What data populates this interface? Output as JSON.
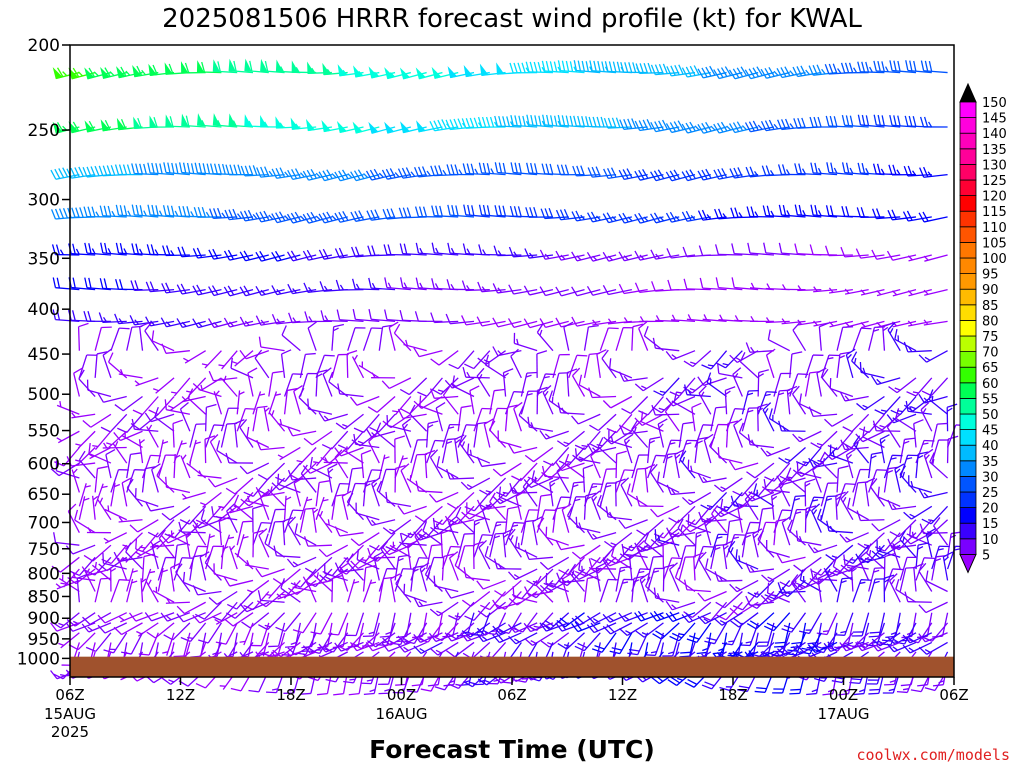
{
  "chart_data": {
    "type": "wind-barb time-height profile",
    "title": "2025081506 HRRR forecast wind profile (kt) for KWAL",
    "xlabel": "Forecast Time (UTC)",
    "ylabel": "",
    "x_ticks": [
      {
        "label": "06Z",
        "sub": [
          "15AUG",
          "2025"
        ],
        "hours": 0
      },
      {
        "label": "12Z",
        "sub": [],
        "hours": 6
      },
      {
        "label": "18Z",
        "sub": [],
        "hours": 12
      },
      {
        "label": "00Z",
        "sub": [
          "16AUG"
        ],
        "hours": 18
      },
      {
        "label": "06Z",
        "sub": [],
        "hours": 24
      },
      {
        "label": "12Z",
        "sub": [],
        "hours": 30
      },
      {
        "label": "18Z",
        "sub": [],
        "hours": 36
      },
      {
        "label": "00Z",
        "sub": [
          "17AUG"
        ],
        "hours": 42
      },
      {
        "label": "06Z",
        "sub": [],
        "hours": 48
      }
    ],
    "x_range_hours": [
      0,
      48
    ],
    "y_ticks": [
      200,
      250,
      300,
      350,
      400,
      450,
      500,
      550,
      600,
      650,
      700,
      750,
      800,
      850,
      900,
      950,
      1000
    ],
    "y_range_hPa": [
      200,
      1050
    ],
    "y_scale": "log",
    "colorbar": {
      "levels": [
        5,
        10,
        15,
        20,
        25,
        30,
        35,
        40,
        45,
        50,
        55,
        60,
        65,
        70,
        75,
        80,
        85,
        90,
        95,
        100,
        105,
        110,
        115,
        120,
        125,
        130,
        135,
        140,
        145,
        150
      ],
      "colors": [
        "#9a00ff",
        "#7a00ff",
        "#3a00ff",
        "#0000ff",
        "#0033ff",
        "#0055ff",
        "#0088ff",
        "#00bbff",
        "#00e0ff",
        "#00ffdd",
        "#00ff99",
        "#00ff55",
        "#33ff00",
        "#77ff00",
        "#bbff00",
        "#ffff00",
        "#ffdd00",
        "#ffbb00",
        "#ff9900",
        "#ff8800",
        "#ff7700",
        "#ff5500",
        "#ff3300",
        "#ff0000",
        "#ff0033",
        "#ff0066",
        "#ff0099",
        "#ff00bb",
        "#ff00dd",
        "#ff00ff"
      ]
    },
    "surface_color": "#a0522d",
    "surface_pressure_hPa": 1030
  },
  "credit": "coolwx.com/models"
}
